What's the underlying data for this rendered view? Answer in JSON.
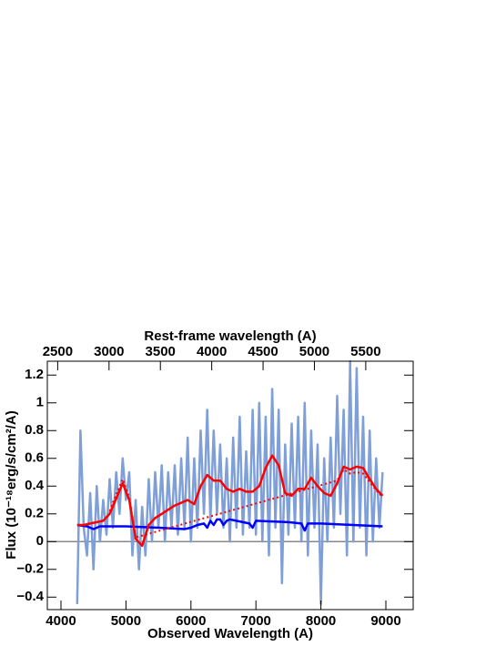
{
  "chart_data": {
    "type": "line",
    "xlabel": "Observed Wavelength (A)",
    "x2label": "Rest-frame wavelength (A)",
    "ylabel": "Flux (10⁻¹⁸erg/s/cm²/A)",
    "xlim": [
      3790,
      9420
    ],
    "xticks": [
      4000,
      5000,
      6000,
      7000,
      8000,
      9000
    ],
    "x2lim": [
      2399,
      5962
    ],
    "x2ticks": [
      2500,
      3000,
      3500,
      4000,
      4500,
      5000,
      5500
    ],
    "ylim": [
      -0.49,
      1.3
    ],
    "yticks": [
      {
        "value": -0.4,
        "label": "−0.4"
      },
      {
        "value": -0.2,
        "label": "−0.2"
      },
      0,
      0.2,
      0.4,
      0.6,
      0.8,
      1,
      1.2
    ],
    "series": [
      {
        "color": "#7f9fd8",
        "width": 2.5,
        "x": [
          4250,
          4300,
          4350,
          4400,
          4450,
          4500,
          4550,
          4600,
          4650,
          4700,
          4750,
          4800,
          4850,
          4900,
          4950,
          5000,
          5050,
          5100,
          5150,
          5200,
          5250,
          5300,
          5350,
          5400,
          5450,
          5500,
          5550,
          5600,
          5650,
          5700,
          5750,
          5800,
          5850,
          5900,
          5950,
          6000,
          6050,
          6100,
          6150,
          6200,
          6250,
          6300,
          6350,
          6400,
          6450,
          6500,
          6550,
          6600,
          6650,
          6700,
          6750,
          6800,
          6850,
          6900,
          6950,
          7000,
          7050,
          7100,
          7150,
          7200,
          7250,
          7300,
          7350,
          7400,
          7450,
          7500,
          7550,
          7600,
          7650,
          7700,
          7750,
          7800,
          7850,
          7900,
          7950,
          8000,
          8050,
          8100,
          8150,
          8200,
          8250,
          8300,
          8350,
          8400,
          8450,
          8500,
          8550,
          8600,
          8650,
          8700,
          8750,
          8800,
          8850,
          8900,
          8950
        ],
        "values": [
          -0.45,
          0.8,
          0.1,
          -0.1,
          0.35,
          -0.2,
          0.4,
          0.0,
          0.3,
          0.05,
          0.45,
          0.1,
          0.5,
          0.2,
          0.6,
          0.3,
          0.5,
          -0.1,
          0.3,
          -0.2,
          0.25,
          -0.1,
          0.45,
          0.0,
          0.5,
          0.1,
          0.55,
          0.0,
          0.5,
          0.1,
          0.55,
          0.05,
          0.6,
          0.1,
          0.75,
          0.0,
          0.6,
          0.1,
          0.8,
          0.2,
          0.95,
          0.15,
          0.8,
          0.2,
          0.7,
          0.1,
          0.6,
          0.0,
          0.75,
          0.1,
          0.9,
          0.05,
          0.65,
          0.1,
          0.95,
          0.05,
          1.0,
          0.0,
          0.9,
          -0.1,
          1.1,
          0.1,
          0.95,
          -0.3,
          0.7,
          0.05,
          0.85,
          0.1,
          0.9,
          0.0,
          1.0,
          -0.1,
          0.8,
          0.1,
          0.7,
          -0.45,
          0.6,
          0.0,
          0.75,
          0.1,
          1.05,
          0.2,
          0.95,
          -0.1,
          1.3,
          0.0,
          1.25,
          0.1,
          0.9,
          -0.1,
          0.8,
          0.0,
          0.6,
          0.1,
          0.5
        ]
      },
      {
        "color": "#0000ff",
        "width": 2.5,
        "x": [
          4250,
          4400,
          4500,
          4600,
          5000,
          5500,
          5900,
          6000,
          6100,
          6200,
          6250,
          6300,
          6350,
          6400,
          6450,
          6500,
          6550,
          6600,
          6700,
          6800,
          6900,
          6950,
          7000,
          7500,
          7700,
          7750,
          7800,
          8000,
          8500,
          8950
        ],
        "values": [
          0.12,
          0.11,
          0.09,
          0.11,
          0.11,
          0.1,
          0.09,
          0.1,
          0.12,
          0.13,
          0.1,
          0.15,
          0.12,
          0.16,
          0.16,
          0.12,
          0.15,
          0.16,
          0.15,
          0.14,
          0.13,
          0.1,
          0.15,
          0.14,
          0.13,
          0.08,
          0.13,
          0.13,
          0.12,
          0.11
        ]
      },
      {
        "color": "#ff0000",
        "width": 2.5,
        "x": [
          4250,
          4350,
          4450,
          4550,
          4650,
          4750,
          4850,
          4950,
          5050,
          5150,
          5250,
          5350,
          5450,
          5550,
          5650,
          5750,
          5850,
          5950,
          6050,
          6150,
          6250,
          6350,
          6450,
          6550,
          6650,
          6750,
          6850,
          6950,
          7050,
          7150,
          7250,
          7350,
          7450,
          7550,
          7650,
          7750,
          7850,
          7950,
          8050,
          8150,
          8250,
          8350,
          8450,
          8550,
          8650,
          8750,
          8850,
          8950
        ],
        "values": [
          0.12,
          0.12,
          0.13,
          0.14,
          0.15,
          0.2,
          0.31,
          0.42,
          0.3,
          0.02,
          -0.03,
          0.12,
          0.17,
          0.2,
          0.23,
          0.26,
          0.28,
          0.3,
          0.27,
          0.4,
          0.48,
          0.44,
          0.44,
          0.38,
          0.36,
          0.38,
          0.36,
          0.36,
          0.4,
          0.53,
          0.62,
          0.55,
          0.35,
          0.33,
          0.38,
          0.38,
          0.46,
          0.4,
          0.35,
          0.33,
          0.42,
          0.54,
          0.52,
          0.54,
          0.53,
          0.45,
          0.38,
          0.33
        ]
      },
      {
        "color": "#ff0000",
        "width": 2,
        "dash": "2,3",
        "x": [
          4750,
          4850,
          4950,
          5050,
          5150,
          8250,
          8350,
          8450,
          8550,
          8650,
          8750,
          8850,
          8950
        ],
        "values": [
          0.22,
          0.34,
          0.45,
          0.32,
          0.03,
          0.44,
          0.52,
          0.49,
          0.5,
          0.49,
          0.43,
          0.37,
          0.32
        ]
      }
    ]
  }
}
